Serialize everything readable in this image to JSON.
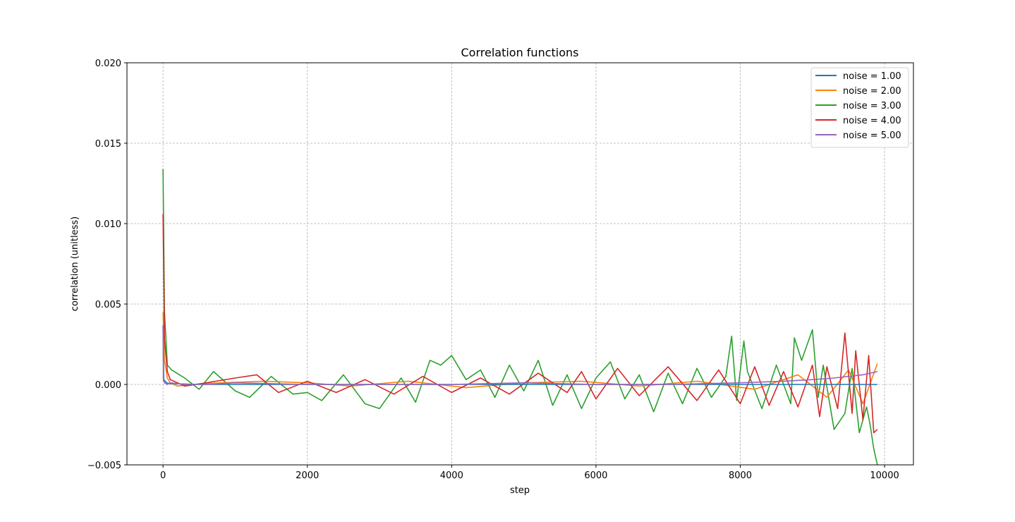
{
  "chart_data": {
    "type": "line",
    "title": "Correlation functions",
    "xlabel": "step",
    "ylabel": "correlation (unitless)",
    "xlim": [
      -500,
      10400
    ],
    "ylim": [
      -0.005,
      0.02
    ],
    "xticks": [
      0,
      2000,
      4000,
      6000,
      8000,
      10000
    ],
    "xtick_labels": [
      "0",
      "2000",
      "4000",
      "6000",
      "8000",
      "10000"
    ],
    "yticks": [
      -0.005,
      0.0,
      0.005,
      0.01,
      0.015,
      0.02
    ],
    "ytick_labels": [
      "−0.005",
      "0.000",
      "0.005",
      "0.010",
      "0.015",
      "0.020"
    ],
    "grid": true,
    "legend_position": "top-right",
    "series": [
      {
        "name": "noise = 1.00",
        "color": "#1f77b4",
        "x": [
          0,
          10,
          50,
          100,
          500,
          1000,
          2000,
          4000,
          6000,
          8000,
          9000,
          9500,
          9900
        ],
        "y": [
          0.0036,
          0.0003,
          0.0001,
          5e-05,
          0.0,
          0.0,
          0.0,
          0.0,
          0.0,
          0.0,
          0.0,
          0.0,
          0.0
        ]
      },
      {
        "name": "noise = 2.00",
        "color": "#ff7f0e",
        "x": [
          0,
          20,
          60,
          100,
          200,
          400,
          800,
          1400,
          2000,
          2600,
          3400,
          4200,
          5000,
          5800,
          6600,
          7400,
          8200,
          8800,
          9200,
          9500,
          9700,
          9900
        ],
        "y": [
          0.0045,
          0.0015,
          0.0004,
          0.0001,
          -0.0001,
          0.0,
          0.0001,
          0.0002,
          0.0001,
          -0.0001,
          0.0002,
          -0.0002,
          0.0001,
          0.0002,
          -0.0001,
          0.0002,
          -0.0003,
          0.0006,
          -0.0008,
          0.0009,
          -0.0012,
          0.0013
        ]
      },
      {
        "name": "noise = 3.00",
        "color": "#2ca02c",
        "x": [
          0,
          20,
          60,
          120,
          300,
          500,
          700,
          1000,
          1200,
          1500,
          1800,
          2000,
          2200,
          2500,
          2800,
          3000,
          3300,
          3500,
          3700,
          3850,
          4000,
          4200,
          4400,
          4600,
          4800,
          5000,
          5200,
          5400,
          5600,
          5800,
          6000,
          6200,
          6400,
          6600,
          6800,
          7000,
          7200,
          7400,
          7600,
          7800,
          7880,
          7950,
          8050,
          8100,
          8300,
          8500,
          8700,
          8750,
          8850,
          9000,
          9080,
          9150,
          9300,
          9450,
          9550,
          9650,
          9750,
          9800,
          9850,
          9900
        ],
        "y": [
          0.0134,
          0.0045,
          0.0012,
          0.0009,
          0.0004,
          -0.0003,
          0.0008,
          -0.0004,
          -0.0008,
          0.0005,
          -0.0006,
          -0.0005,
          -0.001,
          0.0006,
          -0.0012,
          -0.0015,
          0.0004,
          -0.0011,
          0.0015,
          0.0012,
          0.0018,
          0.0003,
          0.0009,
          -0.0008,
          0.0012,
          -0.0004,
          0.0015,
          -0.0013,
          0.0006,
          -0.0015,
          0.0004,
          0.0014,
          -0.0009,
          0.0006,
          -0.0017,
          0.0007,
          -0.0012,
          0.001,
          -0.0008,
          0.0005,
          0.003,
          -0.001,
          0.0027,
          0.0008,
          -0.0015,
          0.0012,
          -0.0012,
          0.0029,
          0.0015,
          0.0034,
          -0.0008,
          0.0012,
          -0.0028,
          -0.0018,
          0.001,
          -0.003,
          -0.0014,
          -0.0025,
          -0.004,
          -0.005
        ]
      },
      {
        "name": "noise = 4.00",
        "color": "#d62728",
        "x": [
          0,
          20,
          60,
          100,
          300,
          600,
          1000,
          1300,
          1600,
          2000,
          2400,
          2800,
          3200,
          3600,
          4000,
          4400,
          4800,
          5200,
          5600,
          5800,
          6000,
          6300,
          6600,
          7000,
          7400,
          7700,
          8000,
          8200,
          8400,
          8600,
          8800,
          9000,
          9100,
          9200,
          9350,
          9450,
          9550,
          9600,
          9700,
          9780,
          9850,
          9900
        ],
        "y": [
          0.0106,
          0.0028,
          0.0008,
          0.0003,
          -0.0001,
          0.0001,
          0.0004,
          0.0006,
          -0.0005,
          0.0002,
          -0.0005,
          0.0003,
          -0.0006,
          0.0005,
          -0.0005,
          0.0004,
          -0.0006,
          0.0007,
          -0.0005,
          0.0008,
          -0.0009,
          0.001,
          -0.0007,
          0.0011,
          -0.001,
          0.0009,
          -0.0012,
          0.0011,
          -0.0013,
          0.0008,
          -0.0014,
          0.0012,
          -0.002,
          0.0011,
          -0.0015,
          0.0032,
          -0.0018,
          0.0021,
          -0.0022,
          0.0018,
          -0.003,
          -0.0028
        ]
      },
      {
        "name": "noise = 5.00",
        "color": "#9467bd",
        "x": [
          0,
          5,
          20,
          60,
          100,
          300,
          600,
          1000,
          2000,
          3000,
          4000,
          5000,
          6000,
          7000,
          8000,
          8600,
          9000,
          9300,
          9500,
          9700,
          9800,
          9900
        ],
        "y": [
          0.0037,
          0.0003,
          0.0001,
          0.0,
          0.0001,
          0.0,
          0.0,
          0.0001,
          0.0,
          0.0,
          0.0,
          0.0001,
          0.0,
          0.0,
          0.0001,
          0.0002,
          0.0003,
          0.0004,
          0.0005,
          0.0006,
          0.0007,
          0.0008
        ]
      }
    ]
  }
}
